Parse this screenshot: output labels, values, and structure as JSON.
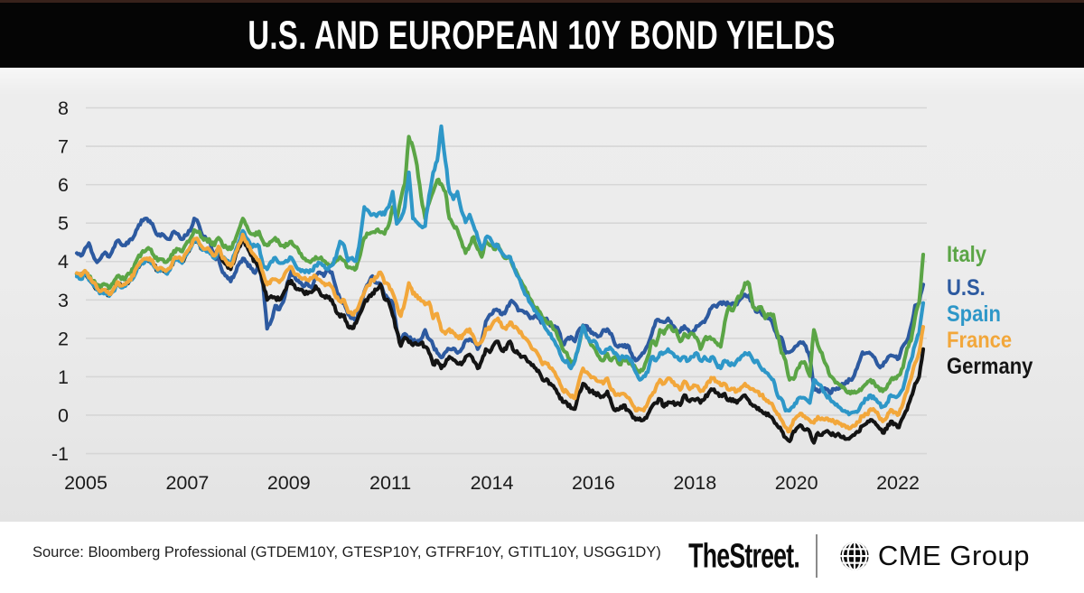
{
  "header": {
    "title": "U.S. AND EUROPEAN 10Y BOND YIELDS"
  },
  "footer": {
    "source": "Source: Bloomberg Professional (GTDEM10Y, GTESP10Y, GTFRF10Y, GTITL10Y, USGG1DY)",
    "brand_left": "TheStreet.",
    "brand_right": "CME Group",
    "globe_icon": "cme-globe-icon"
  },
  "chart_data": {
    "type": "line",
    "title": "U.S. and European 10Y Bond Yields",
    "x_start_year": 2005,
    "x_step": "monthly",
    "x_end_year": 2022.42,
    "ylim": [
      -1,
      8
    ],
    "yticks": [
      8,
      7,
      6,
      5,
      4,
      3,
      2,
      1,
      0,
      -1
    ],
    "xtick_labels": [
      "2005",
      "2007",
      "2009",
      "2011",
      "2014",
      "2016",
      "2018",
      "2020",
      "2022"
    ],
    "grid": "horizontal",
    "legend_position": "right",
    "background": "#ececec",
    "gridline_color": "#d6d6d6",
    "draw_order": [
      "U.S.",
      "Germany",
      "Italy",
      "Spain",
      "France"
    ],
    "series": [
      {
        "name": "Italy",
        "color": "#5ba546",
        "values": [
          3.68,
          3.6,
          3.76,
          3.6,
          3.5,
          3.4,
          3.34,
          3.4,
          3.3,
          3.44,
          3.62,
          3.54,
          3.56,
          3.68,
          3.82,
          4.08,
          4.22,
          4.28,
          4.32,
          4.16,
          4.02,
          4.06,
          3.98,
          4.06,
          4.28,
          4.32,
          4.26,
          4.46,
          4.58,
          4.82,
          4.78,
          4.62,
          4.58,
          4.52,
          4.42,
          4.62,
          4.42,
          4.36,
          4.32,
          4.52,
          4.82,
          5.12,
          4.92,
          4.72,
          4.68,
          4.78,
          4.52,
          4.42,
          4.52,
          4.62,
          4.48,
          4.42,
          4.42,
          4.52,
          4.38,
          4.22,
          4.08,
          4.02,
          4.02,
          4.12,
          4.08,
          4.02,
          3.94,
          3.92,
          4.02,
          4.12,
          4.02,
          3.84,
          3.82,
          3.82,
          4.18,
          4.62,
          4.72,
          4.76,
          4.82,
          4.76,
          4.72,
          4.94,
          5.42,
          5.12,
          5.62,
          6.02,
          7.25,
          6.98,
          6.5,
          5.7,
          5.12,
          5.52,
          5.82,
          6.12,
          6.02,
          5.82,
          5.12,
          4.94,
          4.82,
          4.52,
          4.22,
          4.42,
          4.64,
          4.32,
          4.12,
          4.54,
          4.42,
          4.32,
          4.44,
          4.22,
          4.08,
          4.12,
          3.82,
          3.62,
          3.42,
          3.22,
          3.02,
          2.82,
          2.72,
          2.52,
          2.42,
          2.42,
          2.22,
          1.98,
          1.72,
          1.62,
          1.32,
          1.42,
          1.82,
          2.32,
          2.02,
          1.82,
          1.72,
          1.52,
          1.42,
          1.6,
          1.42,
          1.52,
          1.32,
          1.44,
          1.42,
          1.32,
          1.22,
          1.12,
          1.22,
          1.52,
          1.92,
          1.82,
          2.22,
          2.12,
          2.32,
          2.22,
          2.22,
          1.92,
          2.12,
          2.02,
          2.12,
          2.02,
          1.72,
          1.98,
          2.02,
          1.98,
          1.88,
          1.78,
          2.42,
          2.82,
          2.72,
          3.02,
          3.12,
          3.44,
          3.42,
          2.82,
          2.74,
          2.82,
          2.52,
          2.62,
          2.62,
          2.12,
          1.62,
          1.42,
          0.92,
          0.94,
          1.22,
          1.38,
          1.32,
          1.02,
          2.22,
          1.82,
          1.62,
          1.32,
          1.02,
          0.92,
          0.82,
          0.72,
          0.62,
          0.56,
          0.62,
          0.62,
          0.72,
          0.82,
          0.92,
          0.82,
          0.72,
          0.62,
          0.72,
          0.92,
          0.98,
          1.04,
          1.24,
          1.74,
          1.94,
          2.54,
          2.94,
          4.18
        ]
      },
      {
        "name": "U.S.",
        "color": "#2d5aa0",
        "values": [
          4.22,
          4.15,
          4.34,
          4.48,
          4.18,
          3.98,
          4.1,
          4.24,
          4.12,
          4.34,
          4.54,
          4.44,
          4.42,
          4.56,
          4.64,
          4.86,
          5.08,
          5.12,
          5.06,
          4.88,
          4.68,
          4.72,
          4.62,
          4.58,
          4.78,
          4.72,
          4.58,
          4.68,
          4.8,
          5.12,
          5.0,
          4.68,
          4.58,
          4.48,
          4.12,
          4.08,
          3.72,
          3.62,
          3.48,
          3.68,
          3.92,
          4.08,
          3.98,
          3.82,
          3.7,
          3.9,
          3.4,
          2.25,
          2.45,
          2.85,
          2.75,
          2.95,
          3.45,
          3.75,
          3.55,
          3.45,
          3.35,
          3.42,
          3.32,
          3.62,
          3.72,
          3.62,
          3.8,
          3.72,
          3.32,
          3.02,
          2.92,
          2.62,
          2.52,
          2.48,
          2.82,
          3.22,
          3.42,
          3.62,
          3.44,
          3.42,
          3.12,
          3.02,
          2.92,
          2.22,
          1.92,
          2.12,
          2.02,
          1.92,
          1.92,
          1.98,
          2.22,
          1.98,
          1.82,
          1.62,
          1.5,
          1.64,
          1.72,
          1.74,
          1.62,
          1.72,
          1.94,
          1.98,
          1.92,
          1.72,
          1.94,
          2.44,
          2.62,
          2.74,
          2.72,
          2.62,
          2.72,
          2.94,
          2.92,
          2.72,
          2.72,
          2.68,
          2.52,
          2.58,
          2.52,
          2.42,
          2.52,
          2.32,
          2.32,
          2.2,
          1.84,
          1.98,
          2.04,
          1.92,
          2.22,
          2.34,
          2.32,
          2.14,
          2.12,
          2.06,
          2.22,
          2.24,
          2.12,
          1.82,
          1.82,
          1.78,
          1.82,
          1.6,
          1.42,
          1.52,
          1.62,
          1.82,
          2.12,
          2.46,
          2.44,
          2.42,
          2.52,
          2.32,
          2.22,
          2.18,
          2.32,
          2.22,
          2.12,
          2.32,
          2.38,
          2.42,
          2.64,
          2.84,
          2.82,
          2.94,
          2.92,
          2.88,
          2.92,
          2.88,
          3.04,
          3.14,
          3.12,
          2.82,
          2.68,
          2.66,
          2.52,
          2.52,
          2.32,
          2.02,
          2.02,
          1.62,
          1.64,
          1.72,
          1.82,
          1.88,
          1.8,
          1.5,
          0.72,
          0.62,
          0.68,
          0.68,
          0.56,
          0.68,
          0.68,
          0.82,
          0.88,
          0.92,
          1.04,
          1.34,
          1.64,
          1.62,
          1.6,
          1.5,
          1.28,
          1.28,
          1.44,
          1.56,
          1.52,
          1.48,
          1.8,
          1.94,
          2.32,
          2.86,
          2.92,
          3.4
        ]
      },
      {
        "name": "Spain",
        "color": "#2e97c8",
        "values": [
          3.61,
          3.54,
          3.68,
          3.52,
          3.4,
          3.26,
          3.18,
          3.22,
          3.1,
          3.22,
          3.42,
          3.32,
          3.36,
          3.48,
          3.58,
          3.84,
          3.96,
          4.02,
          4.04,
          3.88,
          3.74,
          3.78,
          3.7,
          3.78,
          4.02,
          4.04,
          3.96,
          4.16,
          4.32,
          4.52,
          4.48,
          4.3,
          4.26,
          4.2,
          4.08,
          4.32,
          4.1,
          4.02,
          3.94,
          4.2,
          4.5,
          4.8,
          4.6,
          4.4,
          4.4,
          4.4,
          3.9,
          3.8,
          4.0,
          4.1,
          3.96,
          3.96,
          4.0,
          4.1,
          3.9,
          3.8,
          3.76,
          3.76,
          3.76,
          3.9,
          3.96,
          3.9,
          3.8,
          3.9,
          4.1,
          4.52,
          4.42,
          4.02,
          4.1,
          4.02,
          4.62,
          5.42,
          5.32,
          5.22,
          5.18,
          5.28,
          5.22,
          5.42,
          5.82,
          4.98,
          5.12,
          5.42,
          6.32,
          5.12,
          5.02,
          4.92,
          4.92,
          5.72,
          6.32,
          6.62,
          7.52,
          6.62,
          5.82,
          5.62,
          5.82,
          5.32,
          5.02,
          5.22,
          4.92,
          4.62,
          4.32,
          4.62,
          4.62,
          4.42,
          4.42,
          4.22,
          4.12,
          4.12,
          3.82,
          3.6,
          3.32,
          3.12,
          2.92,
          2.72,
          2.62,
          2.42,
          2.22,
          2.12,
          1.92,
          1.72,
          1.44,
          1.42,
          1.22,
          1.42,
          1.82,
          2.32,
          2.02,
          1.92,
          1.92,
          1.72,
          1.62,
          1.72,
          1.72,
          1.62,
          1.44,
          1.52,
          1.52,
          1.42,
          1.12,
          0.92,
          1.02,
          1.12,
          1.52,
          1.42,
          1.62,
          1.62,
          1.72,
          1.62,
          1.52,
          1.42,
          1.52,
          1.42,
          1.52,
          1.62,
          1.42,
          1.52,
          1.42,
          1.52,
          1.32,
          1.22,
          1.42,
          1.32,
          1.32,
          1.42,
          1.52,
          1.62,
          1.62,
          1.42,
          1.42,
          1.22,
          1.12,
          1.02,
          0.92,
          0.52,
          0.42,
          0.12,
          0.12,
          0.22,
          0.42,
          0.45,
          0.42,
          0.32,
          0.92,
          0.82,
          0.72,
          0.52,
          0.42,
          0.32,
          0.22,
          0.12,
          0.08,
          0.05,
          0.08,
          0.12,
          0.32,
          0.42,
          0.52,
          0.42,
          0.32,
          0.22,
          0.32,
          0.52,
          0.48,
          0.52,
          0.68,
          1.14,
          1.44,
          1.84,
          2.14,
          2.92
        ]
      },
      {
        "name": "France",
        "color": "#f2a73b",
        "values": [
          3.7,
          3.63,
          3.76,
          3.58,
          3.45,
          3.31,
          3.23,
          3.27,
          3.15,
          3.27,
          3.47,
          3.37,
          3.41,
          3.53,
          3.63,
          3.89,
          4.01,
          4.07,
          4.09,
          3.93,
          3.79,
          3.83,
          3.75,
          3.83,
          4.08,
          4.1,
          4.02,
          4.22,
          4.38,
          4.59,
          4.55,
          4.37,
          4.33,
          4.27,
          4.15,
          4.39,
          4.08,
          3.98,
          3.88,
          4.14,
          4.44,
          4.7,
          4.5,
          4.28,
          4.14,
          4.04,
          3.7,
          3.4,
          3.52,
          3.54,
          3.46,
          3.58,
          3.78,
          3.86,
          3.66,
          3.6,
          3.56,
          3.52,
          3.56,
          3.62,
          3.52,
          3.44,
          3.4,
          3.34,
          3.06,
          2.96,
          3.0,
          2.68,
          2.62,
          2.72,
          2.95,
          3.2,
          3.38,
          3.52,
          3.58,
          3.72,
          3.44,
          3.4,
          3.18,
          2.88,
          2.58,
          2.94,
          3.44,
          3.16,
          3.12,
          2.98,
          2.88,
          2.94,
          2.52,
          2.64,
          2.22,
          2.12,
          2.24,
          2.14,
          2.06,
          2.0,
          2.18,
          2.24,
          2.04,
          1.84,
          1.92,
          2.24,
          2.24,
          2.44,
          2.52,
          2.3,
          2.24,
          2.42,
          2.28,
          2.22,
          2.08,
          1.98,
          1.82,
          1.7,
          1.56,
          1.32,
          1.34,
          1.22,
          1.12,
          0.92,
          0.64,
          0.62,
          0.48,
          0.44,
          0.88,
          1.22,
          1.12,
          0.98,
          0.96,
          0.88,
          0.82,
          0.96,
          0.66,
          0.52,
          0.52,
          0.56,
          0.46,
          0.32,
          0.12,
          0.16,
          0.12,
          0.32,
          0.52,
          0.72,
          0.92,
          0.82,
          0.96,
          0.86,
          0.78,
          0.66,
          0.88,
          0.72,
          0.72,
          0.76,
          0.62,
          0.72,
          0.88,
          0.96,
          0.88,
          0.78,
          0.82,
          0.66,
          0.68,
          0.62,
          0.72,
          0.82,
          0.72,
          0.68,
          0.62,
          0.52,
          0.42,
          0.32,
          0.22,
          0.02,
          -0.12,
          -0.32,
          -0.42,
          -0.12,
          -0.02,
          0.04,
          -0.08,
          -0.14,
          -0.2,
          -0.04,
          -0.08,
          -0.08,
          -0.12,
          -0.18,
          -0.18,
          -0.28,
          -0.32,
          -0.34,
          -0.28,
          -0.18,
          -0.02,
          0.02,
          0.16,
          0.12,
          -0.02,
          -0.16,
          -0.06,
          0.14,
          0.08,
          0.02,
          0.3,
          0.62,
          0.96,
          1.36,
          1.64,
          2.3
        ]
      },
      {
        "name": "Germany",
        "color": "#141414",
        "values": [
          3.68,
          3.61,
          3.74,
          3.56,
          3.42,
          3.28,
          3.2,
          3.24,
          3.12,
          3.24,
          3.44,
          3.34,
          3.38,
          3.5,
          3.6,
          3.86,
          3.98,
          4.04,
          4.06,
          3.9,
          3.76,
          3.8,
          3.72,
          3.8,
          4.04,
          4.06,
          3.98,
          4.18,
          4.34,
          4.54,
          4.5,
          4.32,
          4.28,
          4.22,
          4.1,
          4.34,
          4.02,
          3.92,
          3.8,
          4.06,
          4.36,
          4.6,
          4.4,
          4.16,
          4.0,
          3.86,
          3.44,
          3.0,
          3.1,
          3.06,
          3.0,
          3.16,
          3.4,
          3.5,
          3.3,
          3.26,
          3.2,
          3.16,
          3.2,
          3.36,
          3.2,
          3.1,
          3.06,
          3.0,
          2.7,
          2.56,
          2.6,
          2.3,
          2.26,
          2.4,
          2.66,
          2.92,
          3.06,
          3.18,
          3.26,
          3.4,
          3.02,
          2.96,
          2.6,
          2.2,
          1.8,
          2.02,
          1.9,
          1.82,
          1.84,
          1.88,
          1.78,
          1.62,
          1.32,
          1.42,
          1.22,
          1.34,
          1.52,
          1.44,
          1.34,
          1.32,
          1.52,
          1.58,
          1.4,
          1.22,
          1.42,
          1.72,
          1.64,
          1.84,
          1.92,
          1.68,
          1.72,
          1.92,
          1.66,
          1.6,
          1.52,
          1.46,
          1.36,
          1.24,
          1.16,
          0.92,
          0.94,
          0.82,
          0.7,
          0.54,
          0.34,
          0.32,
          0.18,
          0.16,
          0.58,
          0.82,
          0.7,
          0.62,
          0.58,
          0.52,
          0.48,
          0.62,
          0.32,
          0.12,
          0.16,
          0.26,
          0.14,
          0.02,
          -0.12,
          -0.08,
          -0.12,
          0.02,
          0.22,
          0.32,
          0.42,
          0.22,
          0.34,
          0.32,
          0.28,
          0.26,
          0.52,
          0.38,
          0.42,
          0.42,
          0.32,
          0.42,
          0.58,
          0.66,
          0.58,
          0.52,
          0.56,
          0.38,
          0.42,
          0.32,
          0.44,
          0.52,
          0.38,
          0.24,
          0.16,
          0.12,
          0.06,
          -0.02,
          -0.12,
          -0.28,
          -0.4,
          -0.58,
          -0.68,
          -0.42,
          -0.32,
          -0.28,
          -0.38,
          -0.44,
          -0.72,
          -0.46,
          -0.52,
          -0.42,
          -0.48,
          -0.52,
          -0.48,
          -0.58,
          -0.62,
          -0.58,
          -0.52,
          -0.44,
          -0.28,
          -0.22,
          -0.12,
          -0.18,
          -0.32,
          -0.46,
          -0.36,
          -0.16,
          -0.22,
          -0.32,
          -0.06,
          0.14,
          0.48,
          0.82,
          1.0,
          1.72
        ]
      }
    ]
  }
}
